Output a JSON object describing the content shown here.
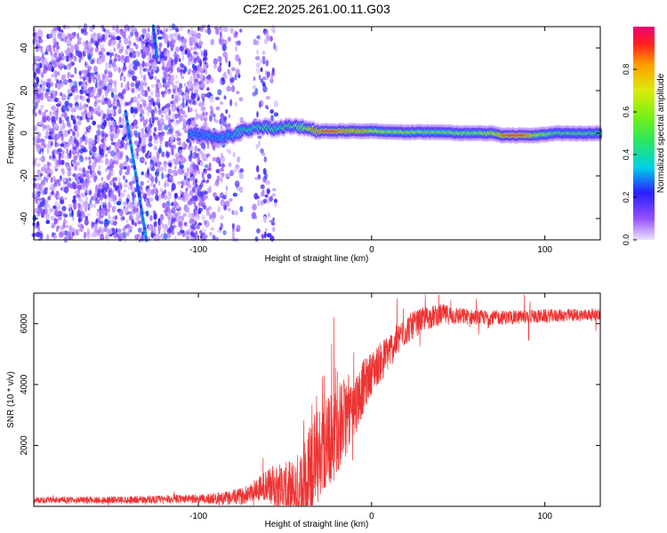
{
  "title": "C2E2.2025.261.00.11.G03",
  "chart_data": [
    {
      "type": "heatmap",
      "name": "spectrogram",
      "xlabel": "Height of straight line (km)",
      "ylabel": "Frequency (Hz)",
      "xlim": [
        -195,
        132
      ],
      "ylim": [
        -50,
        50
      ],
      "xticks": [
        -100,
        0,
        100
      ],
      "yticks": [
        -40,
        -20,
        0,
        20,
        40
      ],
      "tick_labels_x": [
        "-100",
        "0",
        "100"
      ],
      "tick_labels_y": [
        "-40",
        "-20",
        "0",
        "20",
        "40"
      ],
      "colorbar": {
        "label": "Normalized spectral amplitude",
        "range": [
          0,
          1
        ],
        "ticks": [
          "0.0",
          "0.2",
          "0.4",
          "0.6",
          "0.8"
        ]
      },
      "signal_track": [
        {
          "x": -105,
          "f": 0,
          "amp": 0.25
        },
        {
          "x": -90,
          "f": -2,
          "amp": 0.25
        },
        {
          "x": -80,
          "f": -1,
          "amp": 0.3
        },
        {
          "x": -75,
          "f": 1,
          "amp": 0.4
        },
        {
          "x": -70,
          "f": 2,
          "amp": 0.45
        },
        {
          "x": -65,
          "f": 3,
          "amp": 0.45
        },
        {
          "x": -60,
          "f": 3,
          "amp": 0.5
        },
        {
          "x": -55,
          "f": 2,
          "amp": 0.45
        },
        {
          "x": -50,
          "f": 3,
          "amp": 0.5
        },
        {
          "x": -45,
          "f": 3,
          "amp": 0.55
        },
        {
          "x": -40,
          "f": 3,
          "amp": 0.6
        },
        {
          "x": -35,
          "f": 2,
          "amp": 0.75
        },
        {
          "x": -30,
          "f": 1,
          "amp": 0.85
        },
        {
          "x": -25,
          "f": 1,
          "amp": 0.95
        },
        {
          "x": -20,
          "f": 1,
          "amp": 0.9
        },
        {
          "x": -15,
          "f": 1,
          "amp": 0.85
        },
        {
          "x": -10,
          "f": 1,
          "amp": 0.8
        },
        {
          "x": -5,
          "f": 1,
          "amp": 0.8
        },
        {
          "x": 0,
          "f": 1,
          "amp": 0.7
        },
        {
          "x": 10,
          "f": 0.5,
          "amp": 0.65
        },
        {
          "x": 20,
          "f": 0.5,
          "amp": 0.65
        },
        {
          "x": 30,
          "f": 0.5,
          "amp": 0.6
        },
        {
          "x": 40,
          "f": 0.5,
          "amp": 0.6
        },
        {
          "x": 50,
          "f": 0,
          "amp": 0.6
        },
        {
          "x": 60,
          "f": 0,
          "amp": 0.6
        },
        {
          "x": 70,
          "f": 0,
          "amp": 0.7
        },
        {
          "x": 75,
          "f": -1,
          "amp": 0.85
        },
        {
          "x": 80,
          "f": -1,
          "amp": 0.95
        },
        {
          "x": 85,
          "f": -1,
          "amp": 0.95
        },
        {
          "x": 90,
          "f": -1,
          "amp": 0.9
        },
        {
          "x": 95,
          "f": -1,
          "amp": 0.7
        },
        {
          "x": 105,
          "f": 0,
          "amp": 0.55
        },
        {
          "x": 115,
          "f": 0,
          "amp": 0.55
        },
        {
          "x": 125,
          "f": 0,
          "amp": 0.5
        },
        {
          "x": 132,
          "f": 0,
          "amp": 0.5
        }
      ],
      "noise_regions": [
        {
          "x0": -195,
          "x1": -95,
          "density": 0.9
        },
        {
          "x0": -95,
          "x1": -75,
          "density": 0.35
        },
        {
          "x0": -68,
          "x1": -55,
          "density": 0.3
        }
      ],
      "streaks": [
        {
          "x0": -142,
          "f0": 10,
          "x1": -130,
          "f1": -50
        },
        {
          "x0": -126,
          "f0": 50,
          "x1": -124,
          "f1": 36
        }
      ]
    },
    {
      "type": "line",
      "name": "snr",
      "xlabel": "Height of straight line (km)",
      "ylabel": "SNR (10 * v/v)",
      "xlim": [
        -195,
        132
      ],
      "ylim": [
        0,
        7000
      ],
      "xticks": [
        -100,
        0,
        100
      ],
      "yticks": [
        2000,
        4000,
        6000
      ],
      "tick_labels_x": [
        "-100",
        "0",
        "100"
      ],
      "tick_labels_y": [
        "2000",
        "4000",
        "6000"
      ],
      "series_color": "#ee3333",
      "baseline": [
        {
          "x": -195,
          "y": 200
        },
        {
          "x": -140,
          "y": 220
        },
        {
          "x": -110,
          "y": 240
        },
        {
          "x": -85,
          "y": 260
        },
        {
          "x": -75,
          "y": 330
        },
        {
          "x": -65,
          "y": 600
        },
        {
          "x": -55,
          "y": 700
        },
        {
          "x": -45,
          "y": 400
        },
        {
          "x": -38,
          "y": 700
        },
        {
          "x": -32,
          "y": 1600
        },
        {
          "x": -25,
          "y": 2100
        },
        {
          "x": -18,
          "y": 2700
        },
        {
          "x": -10,
          "y": 3300
        },
        {
          "x": -5,
          "y": 3900
        },
        {
          "x": 0,
          "y": 4400
        },
        {
          "x": 10,
          "y": 5100
        },
        {
          "x": 20,
          "y": 5800
        },
        {
          "x": 30,
          "y": 6150
        },
        {
          "x": 40,
          "y": 6300
        },
        {
          "x": 60,
          "y": 6200
        },
        {
          "x": 80,
          "y": 6200
        },
        {
          "x": 100,
          "y": 6250
        },
        {
          "x": 132,
          "y": 6300
        }
      ],
      "noise_amplitude": [
        {
          "x": -195,
          "a": 100
        },
        {
          "x": -100,
          "a": 140
        },
        {
          "x": -70,
          "a": 300
        },
        {
          "x": -50,
          "a": 900
        },
        {
          "x": -35,
          "a": 1700
        },
        {
          "x": -20,
          "a": 1500
        },
        {
          "x": 0,
          "a": 700
        },
        {
          "x": 30,
          "a": 400
        },
        {
          "x": 60,
          "a": 250
        },
        {
          "x": 132,
          "a": 200
        }
      ]
    }
  ]
}
